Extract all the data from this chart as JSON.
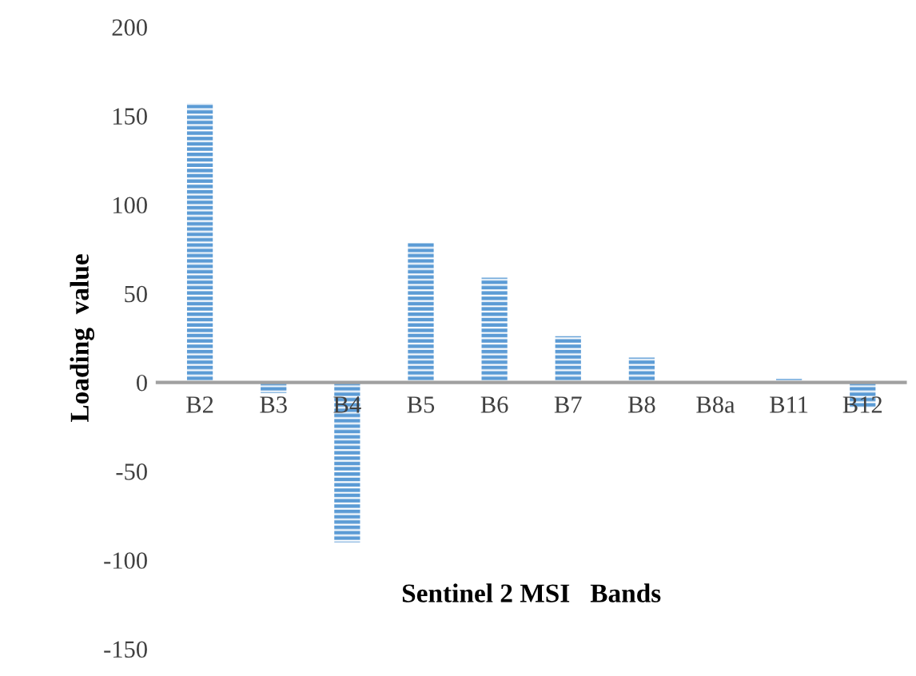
{
  "chart_data": {
    "type": "bar",
    "xlabel": "Sentinel 2 MSI   Bands",
    "ylabel": "Loading  value",
    "categories": [
      "B2",
      "B3",
      "B4",
      "B5",
      "B6",
      "B7",
      "B8",
      "B8a",
      "B11",
      "B12"
    ],
    "values": [
      157,
      -6,
      -90,
      79,
      59,
      26,
      14,
      0,
      2,
      -14
    ],
    "color": "#5b9bd5",
    "ylim": [
      -150,
      200
    ],
    "yticks": [
      -150,
      -100,
      -50,
      0,
      50,
      100,
      150,
      200
    ],
    "grid": false
  }
}
